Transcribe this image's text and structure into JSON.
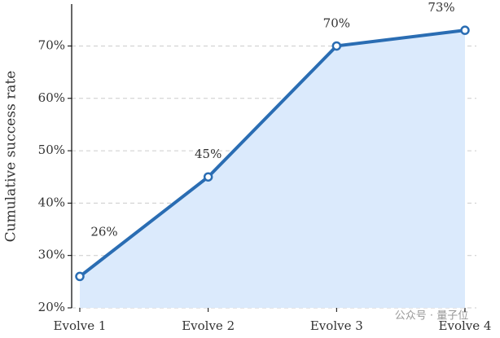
{
  "chart_data": {
    "type": "line",
    "y_label": "Cumulative success rate",
    "categories": [
      "Evolve 1",
      "Evolve 2",
      "Evolve 3",
      "Evolve 4"
    ],
    "values": [
      26,
      45,
      70,
      73
    ],
    "value_labels": [
      "26%",
      "45%",
      "70%",
      "73%"
    ],
    "color": "#2a6db3",
    "fill_color": "#dbeafc",
    "ylim": [
      20,
      78
    ],
    "yticks": [
      {
        "value": 20,
        "label": "20%"
      },
      {
        "value": 30,
        "label": "30%"
      },
      {
        "value": 40,
        "label": "40%"
      },
      {
        "value": 50,
        "label": "50%"
      },
      {
        "value": 60,
        "label": "60%"
      },
      {
        "value": 70,
        "label": "70%"
      }
    ],
    "grid": true,
    "watermark": "公众号 · 量子位"
  }
}
